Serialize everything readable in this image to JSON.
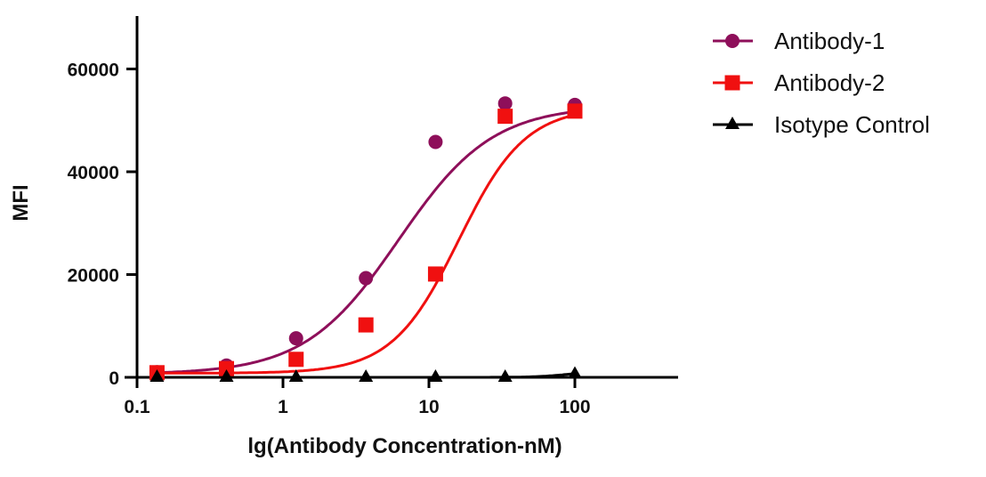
{
  "chart_data": {
    "type": "scatter",
    "title": "",
    "xlabel": "lg(Antibody Concentration-nM)",
    "ylabel": "MFI",
    "xscale": "log",
    "xlim": [
      0.1,
      500
    ],
    "ylim": [
      0,
      70000
    ],
    "xticks": [
      {
        "v": 0.1,
        "label": "0.1"
      },
      {
        "v": 1,
        "label": "1"
      },
      {
        "v": 10,
        "label": "10"
      },
      {
        "v": 100,
        "label": "100"
      }
    ],
    "yticks": [
      {
        "v": 0,
        "label": "0"
      },
      {
        "v": 20000,
        "label": "20000"
      },
      {
        "v": 40000,
        "label": "40000"
      },
      {
        "v": 60000,
        "label": "60000"
      }
    ],
    "grid": false,
    "legend_position": "top-right",
    "x": [
      0.137,
      0.41,
      1.23,
      3.7,
      11.1,
      33.3,
      100
    ],
    "series": [
      {
        "name": "Antibody-1",
        "color": "#8e0f5a",
        "marker": "circle",
        "values": [
          1000,
          2300,
          7600,
          19300,
          45800,
          53300,
          53000
        ],
        "fit": {
          "bottom": 600,
          "top": 52900,
          "ec50": 6.2,
          "hill": 1.35
        }
      },
      {
        "name": "Antibody-2",
        "color": "#f01010",
        "marker": "square",
        "values": [
          900,
          1700,
          3500,
          10200,
          20100,
          50800,
          51800
        ],
        "fit": {
          "bottom": 800,
          "top": 52600,
          "ec50": 16,
          "hill": 1.9
        }
      },
      {
        "name": "Isotype Control",
        "color": "#000000",
        "marker": "triangle",
        "values": [
          0,
          0,
          0,
          0,
          0,
          0,
          600
        ],
        "fit": {
          "bottom": 0,
          "top": 1200,
          "ec50": 90,
          "hill": 4
        }
      }
    ]
  }
}
